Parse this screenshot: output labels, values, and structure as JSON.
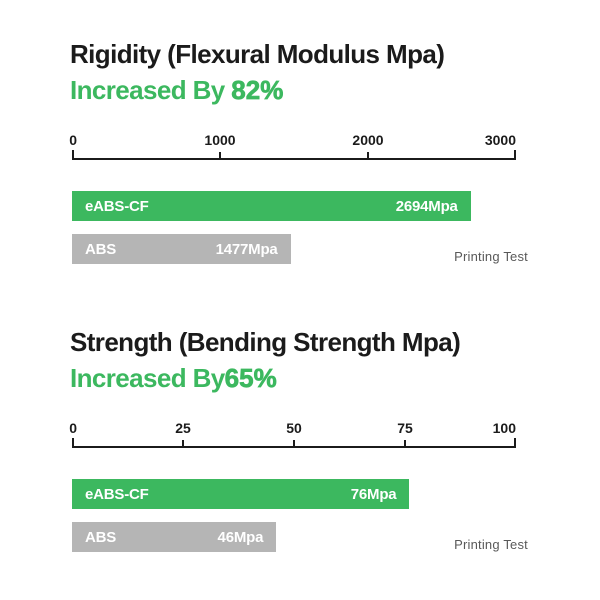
{
  "colors": {
    "accent_green": "#3cb85f",
    "bar_gray": "#b5b5b5",
    "text_dark": "#1b1b1b",
    "footnote_gray": "#595959"
  },
  "chart_data": [
    {
      "type": "bar",
      "title": "Rigidity (Flexural Modulus Mpa)",
      "subtitle_prefix": "Increased By ",
      "subtitle_percent": "82%",
      "xlabel": "",
      "ylabel": "",
      "axis": {
        "min": 0,
        "max": 3000,
        "tick_labels": [
          "0",
          "1000",
          "2000",
          "3000"
        ]
      },
      "categories": [
        "eABS-CF",
        "ABS"
      ],
      "values": [
        2694,
        1477
      ],
      "bars": [
        {
          "label": "eABS-CF",
          "value": 2694,
          "value_label": "2694Mpa",
          "color": "green"
        },
        {
          "label": "ABS",
          "value": 1477,
          "value_label": "1477Mpa",
          "color": "gray"
        }
      ],
      "footnote": "Printing Test",
      "legend": "none",
      "grid": "off"
    },
    {
      "type": "bar",
      "title": "Strength (Bending Strength Mpa)",
      "subtitle_prefix": "Increased By",
      "subtitle_percent": "65%",
      "xlabel": "",
      "ylabel": "",
      "axis": {
        "min": 0,
        "max": 100,
        "tick_labels": [
          "0",
          "25",
          "50",
          "75",
          "100"
        ]
      },
      "categories": [
        "eABS-CF",
        "ABS"
      ],
      "values": [
        76,
        46
      ],
      "bars": [
        {
          "label": "eABS-CF",
          "value": 76,
          "value_label": "76Mpa",
          "color": "green"
        },
        {
          "label": "ABS",
          "value": 46,
          "value_label": "46Mpa",
          "color": "gray"
        }
      ],
      "footnote": "Printing Test",
      "legend": "none",
      "grid": "off"
    }
  ]
}
